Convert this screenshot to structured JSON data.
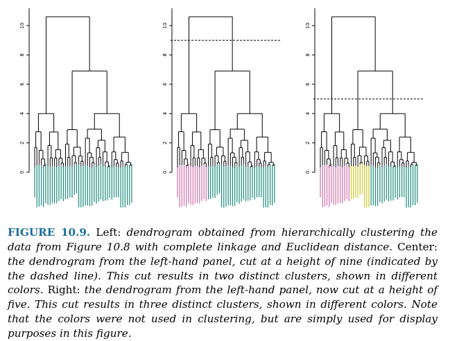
{
  "figure": {
    "panels": [
      {
        "name": "left",
        "title": "",
        "cut_height": null,
        "colors": "single"
      },
      {
        "name": "center",
        "title": "",
        "cut_height": 9,
        "colors": "two"
      },
      {
        "name": "right",
        "title": "",
        "cut_height": 5,
        "colors": "three"
      }
    ],
    "y_ticks": [
      "0",
      "2",
      "4",
      "6",
      "8",
      "10"
    ],
    "palette": {
      "cluster_a": "#1a8a7a",
      "cluster_b": "#cc6eaa",
      "cluster_c": "#c9c626",
      "line": "#000000"
    }
  },
  "chart_data": {
    "type": "dendrogram",
    "ylim": [
      0,
      10.8
    ],
    "panels": [
      "left",
      "center",
      "right"
    ],
    "cut_heights": {
      "center": 9,
      "right": 5
    },
    "n_leaves": 45,
    "root_height": 10.6
  },
  "caption": {
    "label": "FIGURE 10.9.",
    "t1": " Left: ",
    "i1": "dendrogram obtained from hierarchically clustering the data from Figure 10.8 with complete linkage and Euclidean distance.",
    "t2": " Center: ",
    "i2": "the dendrogram from the left-hand panel, cut at a height of nine (indicated by the dashed line). This cut results in two distinct clusters, shown in different colors.",
    "t3": " Right: ",
    "i3": "the dendrogram from the left-hand panel, now cut at a height of five. This cut results in three distinct clusters, shown in different colors. Note that the colors were not used in clustering, but are simply used for display purposes in this figure."
  }
}
